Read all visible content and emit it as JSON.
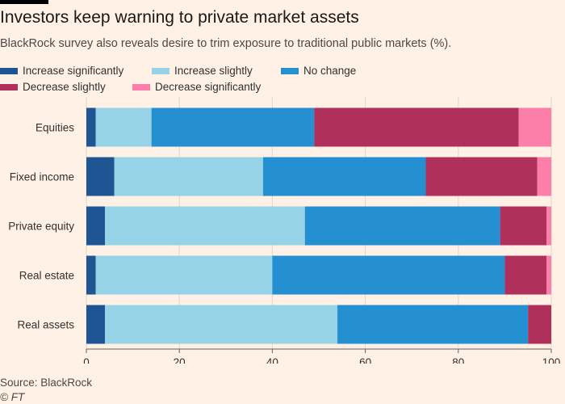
{
  "header": {
    "title": "Investors keep warning to private market assets",
    "subtitle": "BlackRock survey also reveals desire to trim exposure to traditional public markets (%)."
  },
  "colors": {
    "background": "#fff1e5",
    "increase_significantly": "#1f5592",
    "increase_slightly": "#96d3e6",
    "no_change": "#2490d2",
    "decrease_slightly": "#b0305c",
    "decrease_significantly": "#fb7fa9"
  },
  "chart_data": {
    "type": "bar",
    "orientation": "horizontal",
    "stacked": true,
    "title": "Investors keep warning to private market assets",
    "subtitle": "BlackRock survey also reveals desire to trim exposure to traditional public markets (%).",
    "categories": [
      "Equities",
      "Fixed income",
      "Private equity",
      "Real estate",
      "Real assets"
    ],
    "series": [
      {
        "name": "Increase significantly",
        "color": "#1f5592",
        "values": [
          2,
          6,
          4,
          2,
          4
        ]
      },
      {
        "name": "Increase slightly",
        "color": "#96d3e6",
        "values": [
          12,
          32,
          43,
          38,
          50
        ]
      },
      {
        "name": "No change",
        "color": "#2490d2",
        "values": [
          35,
          35,
          42,
          50,
          41
        ]
      },
      {
        "name": "Decrease slightly",
        "color": "#b0305c",
        "values": [
          44,
          24,
          10,
          9,
          5
        ]
      },
      {
        "name": "Decrease significantly",
        "color": "#fb7fa9",
        "values": [
          7,
          3,
          1,
          1,
          0
        ]
      }
    ],
    "xlim": [
      0,
      100
    ],
    "xticks": [
      "0",
      "20",
      "40",
      "60",
      "80",
      "100"
    ],
    "grid": "vertical",
    "legend_position": "top"
  },
  "footer": {
    "source": "Source: BlackRock",
    "credit": "© FT"
  }
}
